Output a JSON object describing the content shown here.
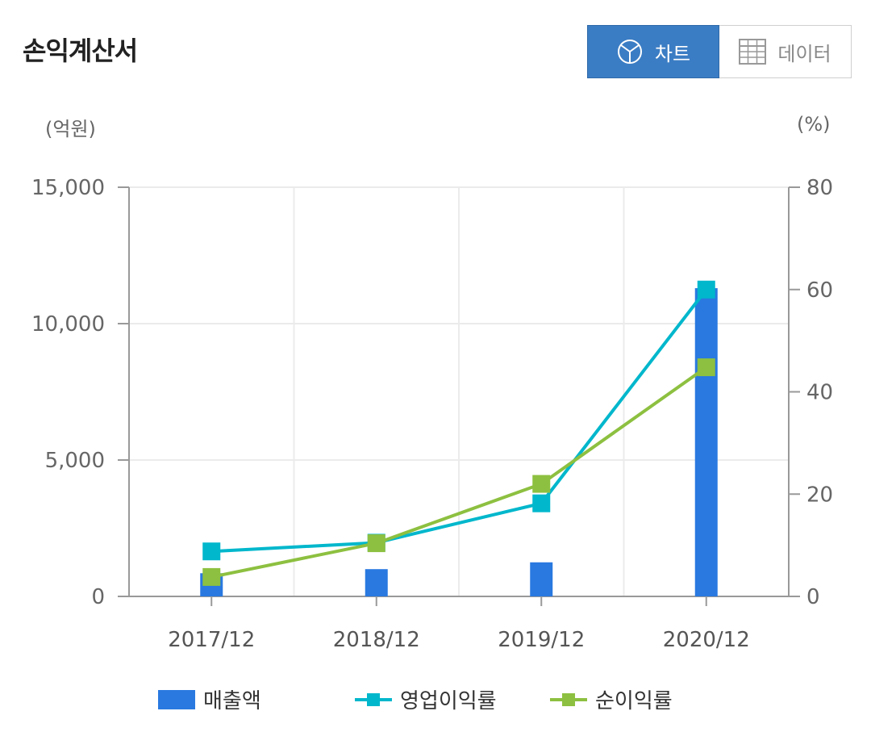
{
  "header": {
    "title": "손익계산서",
    "chart_label": "차트",
    "data_label": "데이터"
  },
  "chart_data": {
    "type": "bar",
    "categories": [
      "2017/12",
      "2018/12",
      "2019/12",
      "2020/12"
    ],
    "left_axis": {
      "unit": "(억원)",
      "ylim": [
        0,
        15000
      ],
      "ticks": [
        0,
        5000,
        10000,
        15000
      ],
      "tick_labels": [
        "0",
        "5,000",
        "10,000",
        "15,000"
      ]
    },
    "right_axis": {
      "unit": "(%)",
      "ylim": [
        0,
        80
      ],
      "ticks": [
        0,
        20,
        40,
        60,
        80
      ],
      "tick_labels": [
        "0",
        "20",
        "40",
        "60",
        "80"
      ]
    },
    "series": [
      {
        "name": "매출액",
        "type": "bar",
        "axis": "left",
        "color": "#2979e0",
        "values": [
          850,
          1000,
          1250,
          11300
        ]
      },
      {
        "name": "영업이익률",
        "type": "line",
        "axis": "right",
        "color": "#00b7cc",
        "values": [
          8.8,
          10.5,
          18.2,
          60.0
        ]
      },
      {
        "name": "순이익률",
        "type": "line",
        "axis": "right",
        "color": "#8dc040",
        "values": [
          3.8,
          10.4,
          22.0,
          44.8
        ]
      }
    ],
    "grid": true,
    "legend_position": "bottom"
  }
}
